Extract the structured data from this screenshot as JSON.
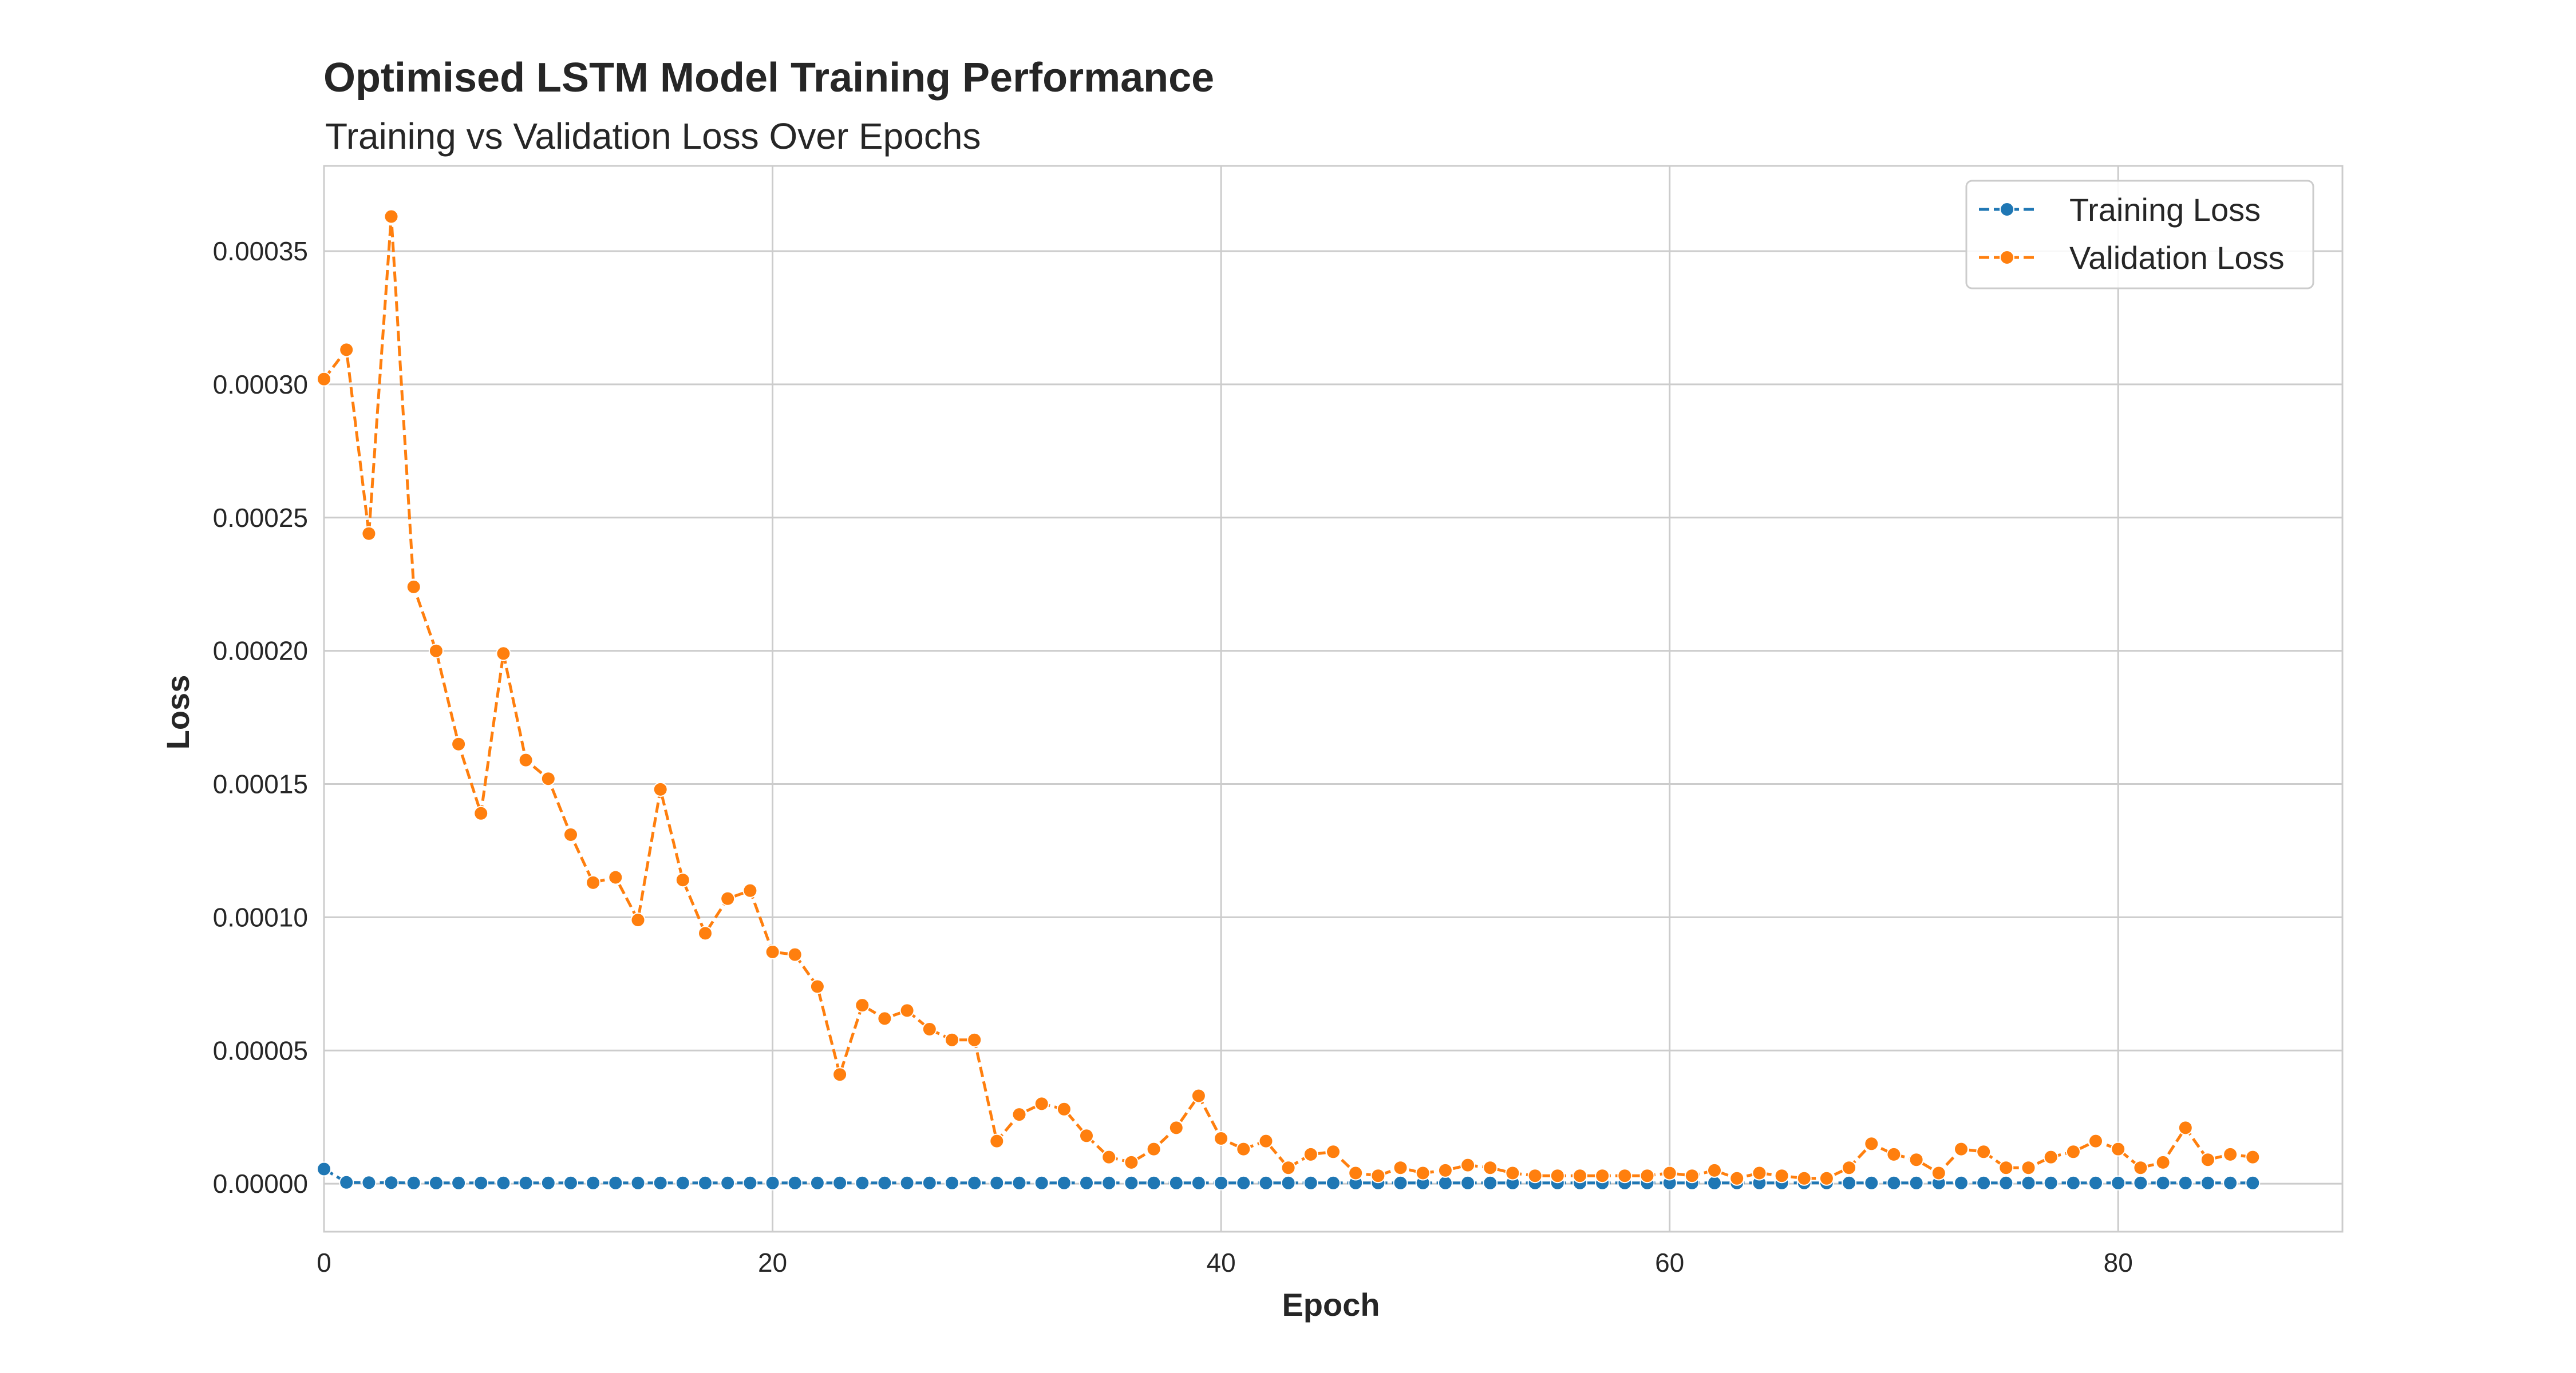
{
  "colors": {
    "training": "#1f77b4",
    "validation": "#ff7f0e",
    "grid": "#cccccc",
    "frame": "#cccccc"
  },
  "chart_data": {
    "type": "line",
    "title": "Optimised LSTM Model Training Performance",
    "subtitle": "Training vs Validation Loss Over Epochs",
    "xlabel": "Epoch",
    "ylabel": "Loss",
    "xlim": [
      0,
      90
    ],
    "ylim": [
      -1.8e-05,
      0.000382
    ],
    "xticks": [
      0,
      20,
      40,
      60,
      80
    ],
    "xtick_labels": [
      "0",
      "20",
      "40",
      "60",
      "80"
    ],
    "yticks": [
      0,
      5e-05,
      0.0001,
      0.00015,
      0.0002,
      0.00025,
      0.0003,
      0.00035
    ],
    "ytick_labels": [
      "0.00000",
      "0.00005",
      "0.00010",
      "0.00015",
      "0.00020",
      "0.00025",
      "0.00030",
      "0.00035"
    ],
    "grid": true,
    "legend_position": "top-right",
    "line_style": "dashed",
    "marker": "circle",
    "series": [
      {
        "name": "Training Loss",
        "color": "#1f77b4",
        "x": [
          0,
          1,
          2,
          3,
          4,
          5,
          6,
          7,
          8,
          9,
          10,
          11,
          12,
          13,
          14,
          15,
          16,
          17,
          18,
          19,
          20,
          21,
          22,
          23,
          24,
          25,
          26,
          27,
          28,
          29,
          30,
          31,
          32,
          33,
          34,
          35,
          36,
          37,
          38,
          39,
          40,
          41,
          42,
          43,
          44,
          45,
          46,
          47,
          48,
          49,
          50,
          51,
          52,
          53,
          54,
          55,
          56,
          57,
          58,
          59,
          60,
          61,
          62,
          63,
          64,
          65,
          66,
          67,
          68,
          69,
          70,
          71,
          72,
          73,
          74,
          75,
          76,
          77,
          78,
          79,
          80,
          81,
          82,
          83,
          84,
          85,
          86
        ],
        "values": [
          5.5e-06,
          5e-07,
          4e-07,
          4e-07,
          3e-07,
          3e-07,
          3e-07,
          3e-07,
          3e-07,
          3e-07,
          3e-07,
          3e-07,
          3e-07,
          3e-07,
          3e-07,
          3e-07,
          3e-07,
          3e-07,
          3e-07,
          3e-07,
          3e-07,
          3e-07,
          3e-07,
          3e-07,
          3e-07,
          3e-07,
          3e-07,
          3e-07,
          3e-07,
          3e-07,
          3e-07,
          3e-07,
          3e-07,
          3e-07,
          3e-07,
          3e-07,
          3e-07,
          3e-07,
          3e-07,
          3e-07,
          3e-07,
          3e-07,
          3e-07,
          3e-07,
          3e-07,
          3e-07,
          3e-07,
          3e-07,
          3e-07,
          3e-07,
          3e-07,
          3e-07,
          3e-07,
          3e-07,
          3e-07,
          3e-07,
          3e-07,
          3e-07,
          3e-07,
          3e-07,
          3e-07,
          3e-07,
          3e-07,
          3e-07,
          3e-07,
          3e-07,
          3e-07,
          3e-07,
          3e-07,
          3e-07,
          3e-07,
          3e-07,
          3e-07,
          3e-07,
          3e-07,
          3e-07,
          3e-07,
          3e-07,
          3e-07,
          3e-07,
          3e-07,
          3e-07,
          3e-07,
          3e-07,
          3e-07,
          3e-07,
          3e-07
        ]
      },
      {
        "name": "Validation Loss",
        "color": "#ff7f0e",
        "x": [
          0,
          1,
          2,
          3,
          4,
          5,
          6,
          7,
          8,
          9,
          10,
          11,
          12,
          13,
          14,
          15,
          16,
          17,
          18,
          19,
          20,
          21,
          22,
          23,
          24,
          25,
          26,
          27,
          28,
          29,
          30,
          31,
          32,
          33,
          34,
          35,
          36,
          37,
          38,
          39,
          40,
          41,
          42,
          43,
          44,
          45,
          46,
          47,
          48,
          49,
          50,
          51,
          52,
          53,
          54,
          55,
          56,
          57,
          58,
          59,
          60,
          61,
          62,
          63,
          64,
          65,
          66,
          67,
          68,
          69,
          70,
          71,
          72,
          73,
          74,
          75,
          76,
          77,
          78,
          79,
          80,
          81,
          82,
          83,
          84,
          85,
          86
        ],
        "values": [
          0.000302,
          0.000313,
          0.000244,
          0.000363,
          0.000224,
          0.0002,
          0.000165,
          0.000139,
          0.000199,
          0.000159,
          0.000152,
          0.000131,
          0.000113,
          0.000115,
          9.9e-05,
          0.000148,
          0.000114,
          9.4e-05,
          0.000107,
          0.00011,
          8.7e-05,
          8.6e-05,
          7.4e-05,
          4.1e-05,
          6.7e-05,
          6.2e-05,
          6.5e-05,
          5.8e-05,
          5.4e-05,
          5.4e-05,
          1.6e-05,
          2.6e-05,
          3e-05,
          2.8e-05,
          1.8e-05,
          1e-05,
          8e-06,
          1.3e-05,
          2.1e-05,
          3.3e-05,
          1.7e-05,
          1.3e-05,
          1.6e-05,
          6e-06,
          1.1e-05,
          1.2e-05,
          4e-06,
          3e-06,
          6e-06,
          4e-06,
          5e-06,
          7e-06,
          6e-06,
          4e-06,
          3e-06,
          3e-06,
          3e-06,
          3e-06,
          3e-06,
          3e-06,
          4e-06,
          3e-06,
          5e-06,
          2e-06,
          4e-06,
          3e-06,
          2e-06,
          2e-06,
          6e-06,
          1.5e-05,
          1.1e-05,
          9e-06,
          4e-06,
          1.3e-05,
          1.2e-05,
          6e-06,
          6e-06,
          1e-05,
          1.2e-05,
          1.6e-05,
          1.3e-05,
          6e-06,
          8e-06,
          2.1e-05,
          9e-06,
          1.1e-05,
          1e-05
        ]
      }
    ]
  }
}
